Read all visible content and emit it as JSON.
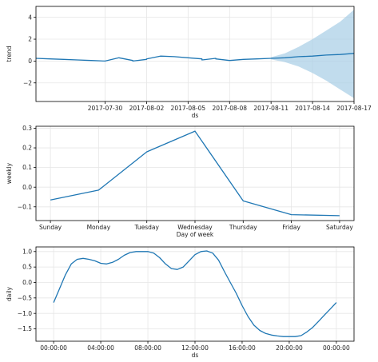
{
  "chart_data": [
    {
      "type": "line",
      "xlabel": "ds",
      "ylabel": "trend",
      "ylim": [
        -3.7,
        5.0
      ],
      "xlim": [
        "2017-07-25",
        "2017-08-17"
      ],
      "y_ticks": [
        -2,
        0,
        2,
        4
      ],
      "x_ticks": [
        "2017-07-30",
        "2017-08-02",
        "2017-08-05",
        "2017-08-08",
        "2017-08-11",
        "2017-08-14",
        "2017-08-17"
      ],
      "grid": true,
      "series": [
        {
          "x": [
            "2017-07-25",
            "2017-07-26",
            "2017-07-27",
            "2017-07-28",
            "2017-07-29",
            "2017-07-30",
            "2017-07-31",
            "2017-08-01",
            "2017-08-01",
            "2017-08-02",
            "2017-08-02",
            "2017-08-03",
            "2017-08-04",
            "2017-08-05",
            "2017-08-06",
            "2017-08-06",
            "2017-08-07",
            "2017-08-07",
            "2017-08-08",
            "2017-08-09",
            "2017-08-10",
            "2017-08-11",
            "2017-08-12",
            "2017-08-13",
            "2017-08-14",
            "2017-08-15",
            "2017-08-16",
            "2017-08-17"
          ],
          "y": [
            0.25,
            0.2,
            0.15,
            0.1,
            0.05,
            0.0,
            0.3,
            0.05,
            0.0,
            0.15,
            0.2,
            0.45,
            0.4,
            0.3,
            0.2,
            0.1,
            0.25,
            0.2,
            0.05,
            0.15,
            0.2,
            0.25,
            0.3,
            0.4,
            0.45,
            0.55,
            0.6,
            0.7
          ]
        }
      ],
      "uncertainty_band": {
        "x": [
          "2017-08-11",
          "2017-08-12",
          "2017-08-13",
          "2017-08-14",
          "2017-08-15",
          "2017-08-16",
          "2017-08-17"
        ],
        "upper": [
          0.35,
          0.7,
          1.3,
          2.0,
          2.8,
          3.6,
          4.7
        ],
        "lower": [
          0.15,
          -0.1,
          -0.5,
          -1.1,
          -1.8,
          -2.6,
          -3.4
        ]
      },
      "line_color": "#1f77b4",
      "band_color": "#a6cde6"
    },
    {
      "type": "line",
      "xlabel": "Day of week",
      "ylabel": "weekly",
      "ylim": [
        -0.17,
        0.31
      ],
      "y_ticks": [
        -0.1,
        0.0,
        0.1,
        0.2,
        0.3
      ],
      "y_tick_labels": [
        "−0.1",
        "0.0",
        "0.1",
        "0.2",
        "0.3"
      ],
      "categories": [
        "Sunday",
        "Monday",
        "Tuesday",
        "Wednesday",
        "Thursday",
        "Friday",
        "Saturday"
      ],
      "grid": true,
      "series": [
        {
          "values": [
            -0.065,
            -0.015,
            0.18,
            0.285,
            -0.07,
            -0.14,
            -0.145
          ]
        }
      ],
      "line_color": "#1f77b4"
    },
    {
      "type": "line",
      "xlabel": "ds",
      "ylabel": "daily",
      "ylim": [
        -1.9,
        1.15
      ],
      "y_ticks": [
        -1.5,
        -1.0,
        -0.5,
        0.0,
        0.5,
        1.0
      ],
      "y_tick_labels": [
        "−1.5",
        "−1.0",
        "−0.5",
        "0.0",
        "0.5",
        "1.0"
      ],
      "x_ticks": [
        "00:00:00",
        "04:00:00",
        "08:00:00",
        "12:00:00",
        "16:00:00",
        "20:00:00",
        "00:00:00"
      ],
      "x_tick_hours": [
        0,
        4,
        8,
        12,
        16,
        20,
        24
      ],
      "xlim_hours": [
        -1.5,
        25.5
      ],
      "grid": true,
      "series": [
        {
          "x_hours": [
            0,
            0.5,
            1,
            1.5,
            2,
            2.5,
            3,
            3.5,
            4,
            4.5,
            5,
            5.5,
            6,
            6.5,
            7,
            7.5,
            8,
            8.5,
            9,
            9.5,
            10,
            10.5,
            11,
            11.5,
            12,
            12.5,
            13,
            13.5,
            14,
            14.5,
            15,
            15.5,
            16,
            16.5,
            17,
            17.5,
            18,
            18.5,
            19,
            19.5,
            20,
            20.5,
            21,
            21.5,
            22,
            22.5,
            23,
            23.5,
            24
          ],
          "y": [
            -0.65,
            -0.2,
            0.25,
            0.6,
            0.75,
            0.78,
            0.75,
            0.7,
            0.62,
            0.6,
            0.65,
            0.75,
            0.88,
            0.97,
            1.0,
            1.0,
            1.0,
            0.95,
            0.8,
            0.6,
            0.45,
            0.42,
            0.5,
            0.7,
            0.9,
            1.0,
            1.02,
            0.95,
            0.72,
            0.35,
            0.0,
            -0.35,
            -0.75,
            -1.1,
            -1.38,
            -1.55,
            -1.65,
            -1.7,
            -1.73,
            -1.75,
            -1.75,
            -1.75,
            -1.72,
            -1.6,
            -1.45,
            -1.25,
            -1.05,
            -0.85,
            -0.65
          ]
        }
      ],
      "line_color": "#1f77b4"
    }
  ]
}
